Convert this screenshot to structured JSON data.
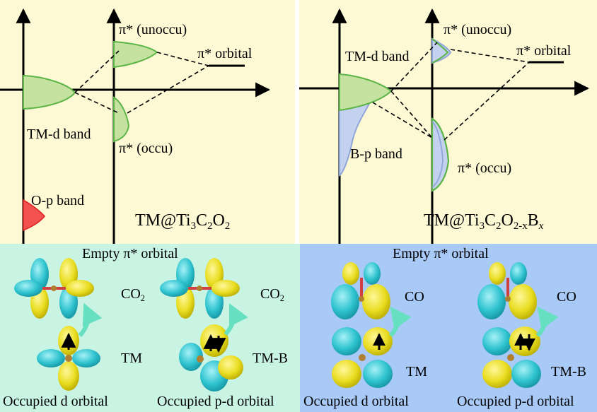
{
  "colors": {
    "top_bg": "#fdf9d5",
    "bottom_left_bg": "#c9f4e3",
    "bottom_right_bg": "#a9c9f7",
    "tm_d_band_fill": "#c6e2a0",
    "tm_d_band_stroke": "#5db547",
    "b_p_band_fill": "#c5d2ef",
    "b_p_band_stroke": "#8fa6d8",
    "o_p_band_fill": "#f35050",
    "lobe_yellow": "#e9dd21",
    "lobe_cyan": "#2ec3cf",
    "arrow_teal": "#66e0c0"
  },
  "top_left": {
    "pi_unoccu": "π* (unoccu)",
    "pi_orbital": "π* orbital",
    "tm_d_band": "TM-d band",
    "pi_occu": "π* (occu)",
    "o_p_band": "O-p band",
    "formula": {
      "a": "TM@Ti",
      "s1": "3",
      "b": "C",
      "s2": "2",
      "c": "O",
      "s3": "2"
    }
  },
  "top_right": {
    "pi_unoccu": "π* (unoccu)",
    "tm_d_band": "TM-d band",
    "pi_orbital": "π* orbital",
    "b_p_band": "B-p band",
    "pi_occu": "π* (occu)",
    "formula": {
      "a": "TM@Ti",
      "s1": "3",
      "b": "C",
      "s2": "2",
      "c": "O",
      "s3": "2-x",
      "d": "B",
      "s4": "x"
    }
  },
  "bottom": {
    "empty_orbital": "Empty π* orbital",
    "co2": {
      "base": "CO",
      "sub": "2"
    },
    "co": "CO",
    "tm": "TM",
    "tm_b": "TM-B",
    "occupied_d": "Occupied d orbital",
    "occupied_pd": "Occupied p-d orbital"
  }
}
